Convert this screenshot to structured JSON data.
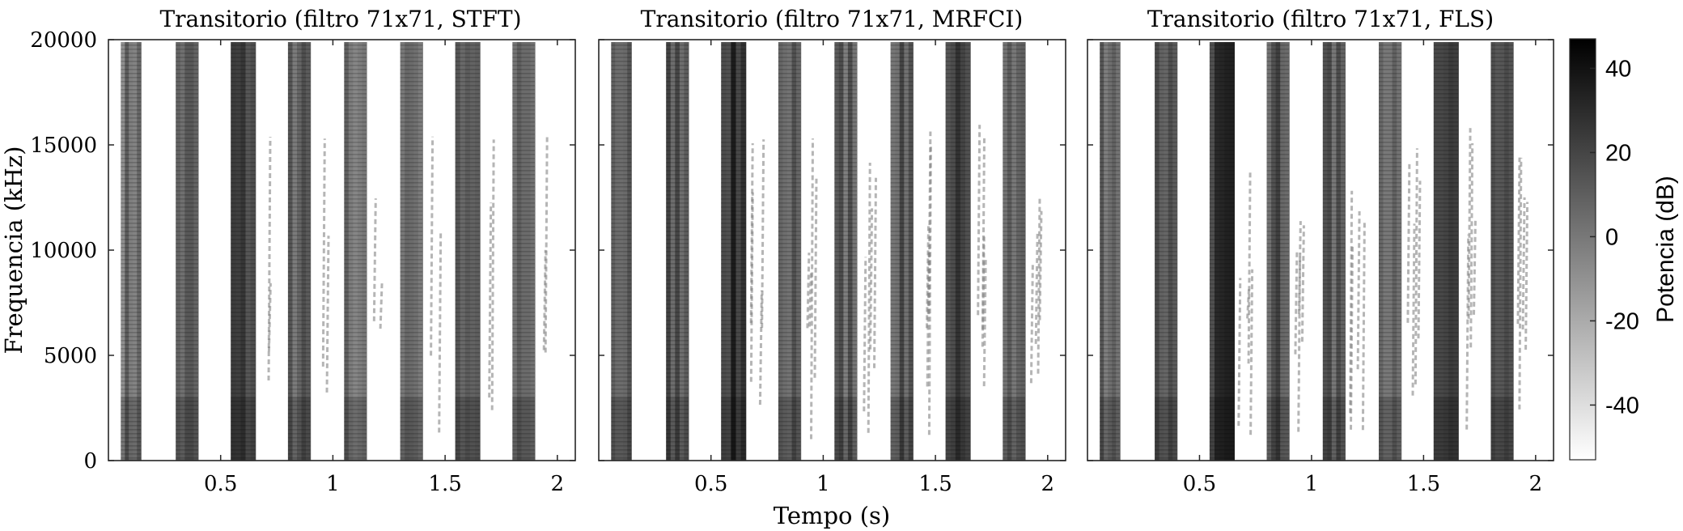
{
  "chart_data": [
    {
      "type": "heatmap",
      "title": "Transitorio (filtro 71x71, STFT)",
      "xlabel": "",
      "ylabel": "Frequencia (kHz)",
      "xlim": [
        0,
        2.08
      ],
      "ylim": [
        0,
        20000
      ],
      "xticks": [
        "0.5",
        "1",
        "1.5",
        "2"
      ],
      "xtick_values": [
        0.5,
        1,
        1.5,
        2
      ],
      "yticks": [
        "0",
        "5000",
        "10000",
        "15000",
        "20000"
      ],
      "ytick_values": [
        0,
        5000,
        10000,
        15000,
        20000
      ],
      "grid": false,
      "colormap": "gray (white = low, black = high)",
      "transient_bands_s": [
        {
          "center": 0.1,
          "width": 0.09
        },
        {
          "center": 0.35,
          "width": 0.1
        },
        {
          "center": 0.6,
          "width": 0.11
        },
        {
          "center": 0.85,
          "width": 0.1
        },
        {
          "center": 1.1,
          "width": 0.1
        },
        {
          "center": 1.35,
          "width": 0.1
        },
        {
          "center": 1.6,
          "width": 0.11
        },
        {
          "center": 1.85,
          "width": 0.1
        }
      ]
    },
    {
      "type": "heatmap",
      "title": "Transitorio (filtro 71x71, MRFCI)",
      "xlabel": "Tempo (s)",
      "ylabel": "",
      "xlim": [
        0,
        2.08
      ],
      "ylim": [
        0,
        20000
      ],
      "xticks": [
        "0.5",
        "1",
        "1.5",
        "2"
      ],
      "xtick_values": [
        0.5,
        1,
        1.5,
        2
      ],
      "grid": false,
      "colormap": "gray (white = low, black = high)"
    },
    {
      "type": "heatmap",
      "title": "Transitorio (filtro 71x71, FLS)",
      "xlabel": "",
      "ylabel": "",
      "xlim": [
        0,
        2.08
      ],
      "ylim": [
        0,
        20000
      ],
      "xticks": [
        "0.5",
        "1",
        "1.5",
        "2"
      ],
      "xtick_values": [
        0.5,
        1,
        1.5,
        2
      ],
      "grid": false,
      "colormap": "gray (white = low, black = high)"
    }
  ],
  "colorbar": {
    "label": "Potencia (dB)",
    "ticks": [
      "40",
      "20",
      "0",
      "-20",
      "-40"
    ],
    "tick_values": [
      40,
      20,
      0,
      -20,
      -40
    ],
    "range": [
      -53,
      47
    ],
    "colors": {
      "low": "#ffffff",
      "high": "#000000"
    }
  }
}
